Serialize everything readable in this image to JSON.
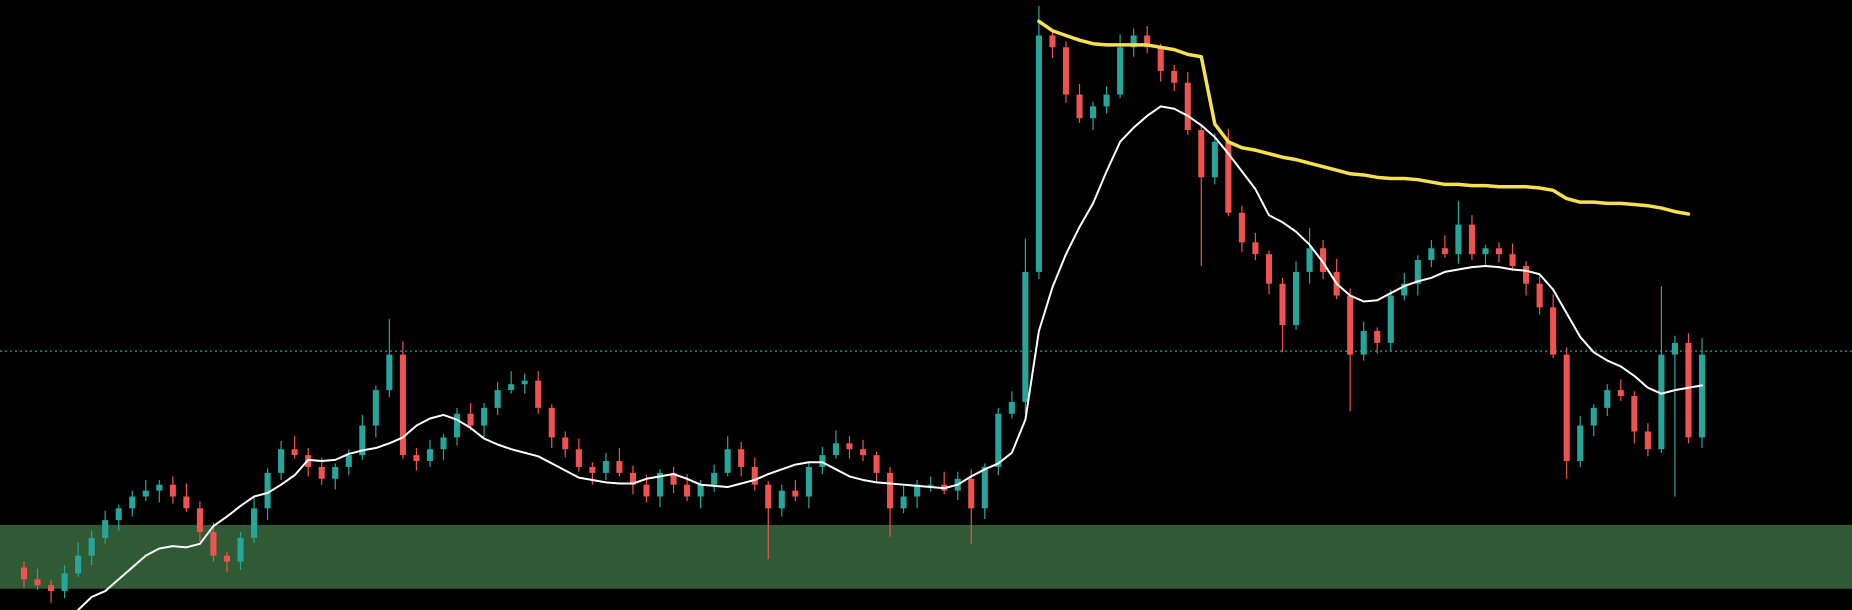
{
  "chart_data": {
    "type": "candlestick",
    "categories": [
      null,
      null,
      null,
      null,
      null,
      null,
      null,
      null,
      null,
      null,
      null,
      null,
      null,
      null,
      null,
      null,
      null,
      null,
      null,
      null,
      null,
      null,
      null,
      null,
      null,
      null,
      null,
      null,
      null,
      null,
      null,
      null,
      null,
      null,
      null,
      null,
      null,
      null,
      null,
      null,
      null,
      null,
      null,
      null,
      null,
      null,
      null,
      null,
      null,
      null,
      null,
      null,
      null,
      null,
      null,
      null,
      null,
      null,
      null,
      null,
      null,
      null,
      null,
      null,
      null,
      null,
      null,
      null,
      null,
      null,
      null,
      null,
      null,
      null,
      null,
      null,
      null,
      null,
      null,
      null,
      null,
      null,
      null,
      null,
      null,
      null,
      null,
      null,
      null,
      null,
      null,
      null,
      null,
      null,
      null,
      null,
      null,
      null,
      null,
      null,
      null,
      null,
      null,
      null,
      null,
      null,
      null,
      null,
      null,
      null,
      null,
      null,
      null,
      null,
      null,
      null,
      null,
      null,
      null,
      null,
      null,
      null,
      null,
      null,
      null
    ],
    "open": [
      36,
      26,
      21,
      16,
      31,
      46,
      61,
      76,
      86,
      96,
      101,
      106,
      96,
      86,
      66,
      46,
      41,
      61,
      86,
      116,
      136,
      131,
      121,
      111,
      121,
      131,
      156,
      186,
      216,
      131,
      126,
      136,
      146,
      166,
      156,
      171,
      186,
      191,
      194,
      171,
      146,
      136,
      121,
      116,
      126,
      116,
      106,
      96,
      116,
      106,
      96,
      106,
      116,
      136,
      121,
      106,
      86,
      101,
      96,
      121,
      131,
      141,
      136,
      131,
      116,
      86,
      96,
      106,
      106,
      101,
      111,
      86,
      121,
      166,
      176,
      286,
      486,
      476,
      436,
      416,
      426,
      436,
      476,
      486,
      476,
      456,
      446,
      406,
      366,
      396,
      336,
      311,
      301,
      276,
      241,
      286,
      306,
      286,
      266,
      216,
      236,
      226,
      266,
      276,
      296,
      306,
      301,
      326,
      301,
      306,
      301,
      291,
      276,
      256,
      216,
      126,
      156,
      171,
      186,
      181,
      151,
      136,
      216,
      226,
      146
    ],
    "high": [
      41,
      35,
      25,
      38,
      57,
      67,
      84,
      89,
      101,
      110,
      110,
      113,
      107,
      92,
      74,
      49,
      66,
      95,
      120,
      143,
      147,
      137,
      129,
      124,
      136,
      165,
      190,
      246,
      227,
      137,
      144,
      149,
      171,
      175,
      175,
      193,
      202,
      200,
      202,
      174,
      151,
      145,
      125,
      133,
      137,
      122,
      114,
      119,
      121,
      115,
      110,
      123,
      147,
      142,
      129,
      109,
      106,
      110,
      125,
      138,
      152,
      147,
      144,
      134,
      121,
      105,
      110,
      113,
      117,
      117,
      119,
      124,
      171,
      185,
      314,
      511,
      489,
      481,
      445,
      430,
      443,
      487,
      492,
      494,
      479,
      461,
      455,
      410,
      403,
      407,
      342,
      319,
      304,
      281,
      295,
      323,
      313,
      297,
      272,
      244,
      239,
      271,
      285,
      300,
      313,
      317,
      346,
      334,
      309,
      311,
      310,
      295,
      283,
      267,
      222,
      164,
      174,
      191,
      195,
      185,
      158,
      274,
      232,
      234,
      230
    ],
    "low": [
      19,
      17,
      6,
      10,
      28,
      38,
      56,
      67,
      79,
      92,
      91,
      90,
      83,
      58,
      41,
      32,
      34,
      57,
      76,
      110,
      128,
      113,
      106,
      102,
      114,
      127,
      146,
      180,
      128,
      118,
      121,
      127,
      139,
      152,
      146,
      165,
      183,
      183,
      166,
      137,
      129,
      117,
      106,
      110,
      113,
      98,
      91,
      87,
      99,
      92,
      86,
      100,
      113,
      113,
      101,
      43,
      79,
      92,
      86,
      115,
      128,
      128,
      126,
      107,
      62,
      82,
      86,
      100,
      98,
      93,
      56,
      77,
      114,
      162,
      166,
      280,
      467,
      429,
      412,
      406,
      420,
      433,
      468,
      471,
      447,
      439,
      402,
      291,
      360,
      333,
      303,
      296,
      267,
      218,
      237,
      276,
      280,
      263,
      168,
      211,
      217,
      219,
      262,
      266,
      290,
      298,
      293,
      296,
      292,
      294,
      287,
      266,
      250,
      213,
      111,
      121,
      147,
      164,
      177,
      141,
      130,
      133,
      96,
      141,
      137
    ],
    "close": [
      26,
      21,
      16,
      31,
      46,
      61,
      76,
      86,
      96,
      101,
      106,
      96,
      86,
      66,
      46,
      41,
      61,
      86,
      116,
      136,
      131,
      121,
      111,
      121,
      131,
      156,
      186,
      216,
      131,
      126,
      136,
      146,
      166,
      156,
      171,
      186,
      191,
      194,
      171,
      146,
      136,
      121,
      116,
      126,
      116,
      106,
      96,
      116,
      106,
      96,
      106,
      116,
      136,
      121,
      106,
      86,
      101,
      96,
      121,
      131,
      141,
      136,
      131,
      116,
      86,
      96,
      106,
      106,
      101,
      111,
      86,
      121,
      166,
      176,
      286,
      486,
      476,
      436,
      416,
      426,
      436,
      476,
      486,
      476,
      456,
      446,
      406,
      366,
      396,
      336,
      311,
      301,
      276,
      241,
      286,
      306,
      286,
      266,
      216,
      236,
      226,
      266,
      276,
      296,
      306,
      301,
      326,
      301,
      306,
      301,
      291,
      276,
      256,
      216,
      126,
      156,
      171,
      186,
      181,
      151,
      136,
      216,
      226,
      146,
      216
    ],
    "up_color": "#26a69a",
    "down_color": "#ef5350",
    "ylim": [
      0,
      516
    ],
    "series": [
      {
        "color": "#ffffff",
        "values": [
          null,
          null,
          null,
          null,
          0,
          11,
          16,
          26,
          36,
          46,
          52,
          54,
          53,
          56,
          71,
          79,
          88,
          96,
          99,
          106,
          114,
          127,
          126,
          127,
          132,
          135,
          137,
          141,
          146,
          156,
          162,
          165,
          161,
          154,
          145,
          140,
          136,
          133,
          130,
          124,
          118,
          112,
          110,
          108,
          107,
          107,
          111,
          113,
          115,
          111,
          106,
          105,
          104,
          107,
          110,
          115,
          119,
          123,
          125,
          125,
          119,
          113,
          110,
          108,
          107,
          106,
          105,
          104,
          103,
          106,
          113,
          119,
          124,
          133,
          161,
          236,
          273,
          301,
          324,
          344,
          371,
          396,
          408,
          418,
          426,
          424,
          418,
          410,
          400,
          386,
          371,
          356,
          334,
          328,
          320,
          309,
          294,
          276,
          266,
          261,
          262,
          268,
          274,
          278,
          281,
          286,
          288,
          290,
          291,
          290,
          288,
          287,
          284,
          271,
          251,
          231,
          218,
          211,
          206,
          198,
          188,
          183,
          186,
          188,
          190
        ]
      },
      {
        "color": "#f5e050",
        "values": [
          null,
          null,
          null,
          null,
          null,
          null,
          null,
          null,
          null,
          null,
          null,
          null,
          null,
          null,
          null,
          null,
          null,
          null,
          null,
          null,
          null,
          null,
          null,
          null,
          null,
          null,
          null,
          null,
          null,
          null,
          null,
          null,
          null,
          null,
          null,
          null,
          null,
          null,
          null,
          null,
          null,
          null,
          null,
          null,
          null,
          null,
          null,
          null,
          null,
          null,
          null,
          null,
          null,
          null,
          null,
          null,
          null,
          null,
          null,
          null,
          null,
          null,
          null,
          null,
          null,
          null,
          null,
          null,
          null,
          null,
          null,
          null,
          null,
          null,
          null,
          498,
          490,
          486,
          482,
          479,
          478,
          478,
          478,
          478,
          476,
          474,
          470,
          468,
          411,
          396,
          391,
          389,
          386,
          383,
          381,
          378,
          375,
          372,
          369,
          368,
          366,
          365,
          365,
          364,
          362,
          360,
          360,
          359,
          359,
          358,
          358,
          358,
          357,
          355,
          348,
          345,
          345,
          344,
          344,
          343,
          342,
          340,
          337,
          335,
          null
        ]
      }
    ],
    "zone": {
      "range": [
        18,
        72
      ],
      "color": "#2f5a34"
    },
    "hline": {
      "value": 219,
      "color": "#26a69a"
    }
  }
}
